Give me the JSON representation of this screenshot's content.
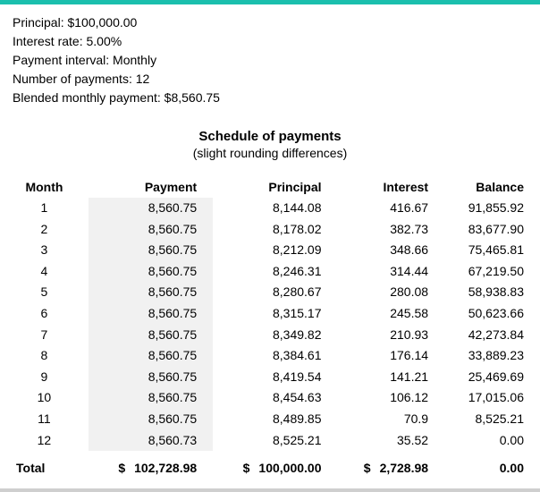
{
  "colors": {
    "accent": "#1bbfad",
    "highlight": "#f1f1f1",
    "text": "#000000",
    "background": "#ffffff",
    "bottom_rule": "#cfcfcf"
  },
  "info": {
    "principal_label": "Principal: $100,000.00",
    "interest_label": "Interest rate: 5.00%",
    "interval_label": "Payment interval: Monthly",
    "num_payments_label": "Number of payments: 12",
    "blended_label": "Blended monthly payment: $8,560.75"
  },
  "title": {
    "main": "Schedule of payments",
    "sub": "(slight rounding differences)"
  },
  "columns": {
    "month": "Month",
    "payment": "Payment",
    "principal": "Principal",
    "interest": "Interest",
    "balance": "Balance"
  },
  "rows": [
    {
      "month": "1",
      "payment": "8,560.75",
      "principal": "8,144.08",
      "interest": "416.67",
      "balance": "91,855.92"
    },
    {
      "month": "2",
      "payment": "8,560.75",
      "principal": "8,178.02",
      "interest": "382.73",
      "balance": "83,677.90"
    },
    {
      "month": "3",
      "payment": "8,560.75",
      "principal": "8,212.09",
      "interest": "348.66",
      "balance": "75,465.81"
    },
    {
      "month": "4",
      "payment": "8,560.75",
      "principal": "8,246.31",
      "interest": "314.44",
      "balance": "67,219.50"
    },
    {
      "month": "5",
      "payment": "8,560.75",
      "principal": "8,280.67",
      "interest": "280.08",
      "balance": "58,938.83"
    },
    {
      "month": "6",
      "payment": "8,560.75",
      "principal": "8,315.17",
      "interest": "245.58",
      "balance": "50,623.66"
    },
    {
      "month": "7",
      "payment": "8,560.75",
      "principal": "8,349.82",
      "interest": "210.93",
      "balance": "42,273.84"
    },
    {
      "month": "8",
      "payment": "8,560.75",
      "principal": "8,384.61",
      "interest": "176.14",
      "balance": "33,889.23"
    },
    {
      "month": "9",
      "payment": "8,560.75",
      "principal": "8,419.54",
      "interest": "141.21",
      "balance": "25,469.69"
    },
    {
      "month": "10",
      "payment": "8,560.75",
      "principal": "8,454.63",
      "interest": "106.12",
      "balance": "17,015.06"
    },
    {
      "month": "11",
      "payment": "8,560.75",
      "principal": "8,489.85",
      "interest": "70.9",
      "balance": "8,525.21"
    },
    {
      "month": "12",
      "payment": "8,560.73",
      "principal": "8,525.21",
      "interest": "35.52",
      "balance": "0.00"
    }
  ],
  "totals": {
    "label": "Total",
    "payment": "102,728.98",
    "principal": "100,000.00",
    "interest": "2,728.98",
    "balance": "0.00"
  },
  "currency_symbol": "$"
}
